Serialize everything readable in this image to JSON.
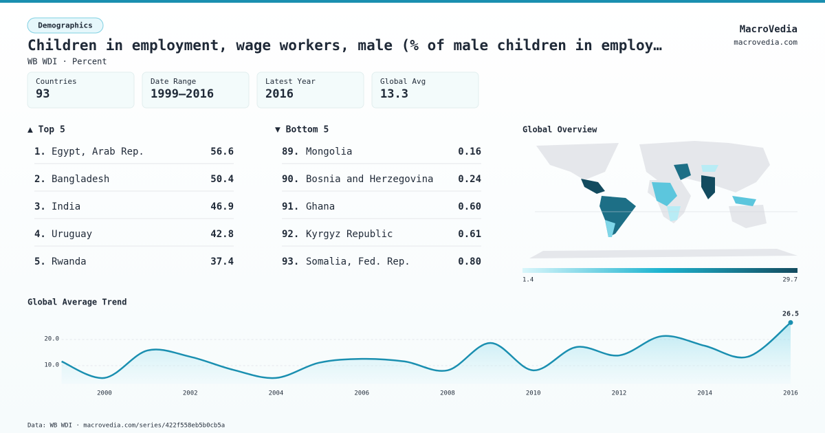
{
  "header": {
    "tag": "Demographics",
    "title": "Children in employment, wage workers, male (% of male children in employ…",
    "subtitle": "WB WDI · Percent",
    "brand": "MacroVedia",
    "site": "macrovedia.com"
  },
  "stats": [
    {
      "label": "Countries",
      "value": 93
    },
    {
      "label": "Date Range",
      "value": "1999–2016"
    },
    {
      "label": "Latest Year",
      "value": 2016
    },
    {
      "label": "Global Avg",
      "value": 13.3
    }
  ],
  "top": {
    "title": "▲ Top 5",
    "rows": [
      {
        "rank": "1.",
        "name": "Egypt, Arab Rep.",
        "value": 56.6
      },
      {
        "rank": "2.",
        "name": "Bangladesh",
        "value": 50.4
      },
      {
        "rank": "3.",
        "name": "India",
        "value": 46.9
      },
      {
        "rank": "4.",
        "name": "Uruguay",
        "value": 42.8
      },
      {
        "rank": "5.",
        "name": "Rwanda",
        "value": 37.4
      }
    ]
  },
  "bottom": {
    "title": "▼ Bottom 5",
    "rows": [
      {
        "rank": "89.",
        "name": "Mongolia",
        "value": 0.16
      },
      {
        "rank": "90.",
        "name": "Bosnia and Herzegovina",
        "value": 0.24
      },
      {
        "rank": "91.",
        "name": "Ghana",
        "value": "0.60"
      },
      {
        "rank": "92.",
        "name": "Kyrgyz Republic",
        "value": 0.61
      },
      {
        "rank": "93.",
        "name": "Somalia, Fed. Rep.",
        "value": "0.80"
      }
    ]
  },
  "map": {
    "title": "Global Overview",
    "legend_min": "1.4",
    "legend_max": "29.7"
  },
  "chart_data": {
    "type": "line",
    "title": "Global Average Trend",
    "x": [
      1999,
      2000,
      2001,
      2002,
      2003,
      2004,
      2005,
      2006,
      2007,
      2008,
      2009,
      2010,
      2011,
      2012,
      2013,
      2014,
      2015,
      2016
    ],
    "values": [
      11.6,
      5.3,
      15.8,
      13.4,
      8.4,
      5.3,
      11.1,
      12.6,
      11.6,
      8.2,
      18.7,
      8.2,
      17.1,
      13.9,
      21.3,
      17.6,
      13.4,
      26.5
    ],
    "value_labels": [
      null,
      null,
      null,
      null,
      null,
      null,
      null,
      null,
      null,
      null,
      null,
      null,
      null,
      null,
      null,
      null,
      null,
      "26.5"
    ],
    "color": "#1a8fb0",
    "xlim": [
      1999,
      2016
    ],
    "ylim": [
      3,
      30
    ],
    "xticks": [
      2000,
      2002,
      2004,
      2006,
      2008,
      2010,
      2012,
      2014,
      2016
    ],
    "yticks": [
      {
        "value": 10,
        "label": "10.0"
      },
      {
        "value": 20,
        "label": "20.0"
      }
    ],
    "grid": true
  },
  "footer": "Data: WB WDI · macrovedia.com/series/422f558eb5b0cb5a"
}
